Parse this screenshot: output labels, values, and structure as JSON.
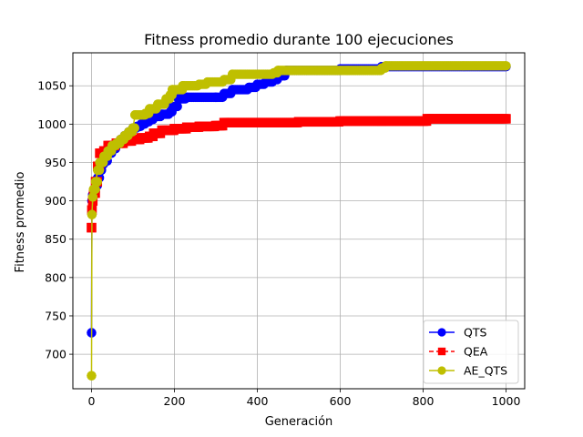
{
  "chart_data": {
    "type": "line",
    "title": "Fitness promedio durante 100 ejecuciones",
    "xlabel": "Generación",
    "ylabel": "Fitness promedio",
    "xlim": [
      -45,
      1045
    ],
    "ylim": [
      655,
      1093
    ],
    "xticks": [
      0,
      200,
      400,
      600,
      800,
      1000
    ],
    "yticks": [
      700,
      750,
      800,
      850,
      900,
      950,
      1000,
      1050
    ],
    "grid": true,
    "legend_position": "bottom-right",
    "series": [
      {
        "name": "QTS",
        "color": "#0000ff",
        "marker": "circle",
        "line_style": "solid",
        "points": [
          [
            0,
            728
          ],
          [
            1,
            900
          ],
          [
            3,
            908
          ],
          [
            5,
            912
          ],
          [
            10,
            920
          ],
          [
            15,
            930
          ],
          [
            20,
            940
          ],
          [
            25,
            948
          ],
          [
            30,
            952
          ],
          [
            40,
            962
          ],
          [
            50,
            968
          ],
          [
            60,
            975
          ],
          [
            70,
            980
          ],
          [
            80,
            985
          ],
          [
            90,
            990
          ],
          [
            100,
            995
          ],
          [
            110,
            997
          ],
          [
            120,
            1000
          ],
          [
            130,
            1003
          ],
          [
            140,
            1006
          ],
          [
            150,
            1010
          ],
          [
            170,
            1013
          ],
          [
            190,
            1016
          ],
          [
            195,
            1023
          ],
          [
            210,
            1033
          ],
          [
            230,
            1035
          ],
          [
            300,
            1035
          ],
          [
            320,
            1040
          ],
          [
            340,
            1045
          ],
          [
            380,
            1048
          ],
          [
            400,
            1052
          ],
          [
            420,
            1055
          ],
          [
            440,
            1058
          ],
          [
            450,
            1063
          ],
          [
            470,
            1070
          ],
          [
            600,
            1072
          ],
          [
            700,
            1075
          ],
          [
            1000,
            1075
          ]
        ]
      },
      {
        "name": "QEA",
        "color": "#ff0000",
        "marker": "square",
        "line_style": "dashed",
        "points": [
          [
            0,
            865
          ],
          [
            1,
            888
          ],
          [
            3,
            900
          ],
          [
            5,
            910
          ],
          [
            10,
            925
          ],
          [
            15,
            945
          ],
          [
            20,
            962
          ],
          [
            30,
            965
          ],
          [
            40,
            972
          ],
          [
            60,
            975
          ],
          [
            80,
            978
          ],
          [
            100,
            980
          ],
          [
            120,
            982
          ],
          [
            140,
            984
          ],
          [
            150,
            988
          ],
          [
            170,
            992
          ],
          [
            200,
            994
          ],
          [
            230,
            996
          ],
          [
            260,
            997
          ],
          [
            300,
            998
          ],
          [
            320,
            1002
          ],
          [
            500,
            1003
          ],
          [
            600,
            1004
          ],
          [
            700,
            1004
          ],
          [
            800,
            1004
          ],
          [
            810,
            1007
          ],
          [
            1000,
            1007
          ]
        ]
      },
      {
        "name": "AE_QTS",
        "color": "#bfbf00",
        "marker": "circle",
        "line_style": "solid",
        "points": [
          [
            0,
            672
          ],
          [
            1,
            882
          ],
          [
            3,
            905
          ],
          [
            5,
            915
          ],
          [
            10,
            925
          ],
          [
            15,
            940
          ],
          [
            20,
            950
          ],
          [
            30,
            958
          ],
          [
            40,
            965
          ],
          [
            50,
            972
          ],
          [
            60,
            975
          ],
          [
            70,
            980
          ],
          [
            80,
            985
          ],
          [
            90,
            990
          ],
          [
            100,
            995
          ],
          [
            105,
            1012
          ],
          [
            130,
            1014
          ],
          [
            140,
            1020
          ],
          [
            160,
            1026
          ],
          [
            180,
            1033
          ],
          [
            190,
            1038
          ],
          [
            195,
            1045
          ],
          [
            220,
            1050
          ],
          [
            260,
            1052
          ],
          [
            280,
            1055
          ],
          [
            320,
            1058
          ],
          [
            340,
            1065
          ],
          [
            440,
            1067
          ],
          [
            450,
            1070
          ],
          [
            700,
            1073
          ],
          [
            710,
            1076
          ],
          [
            1000,
            1076
          ]
        ]
      }
    ]
  }
}
